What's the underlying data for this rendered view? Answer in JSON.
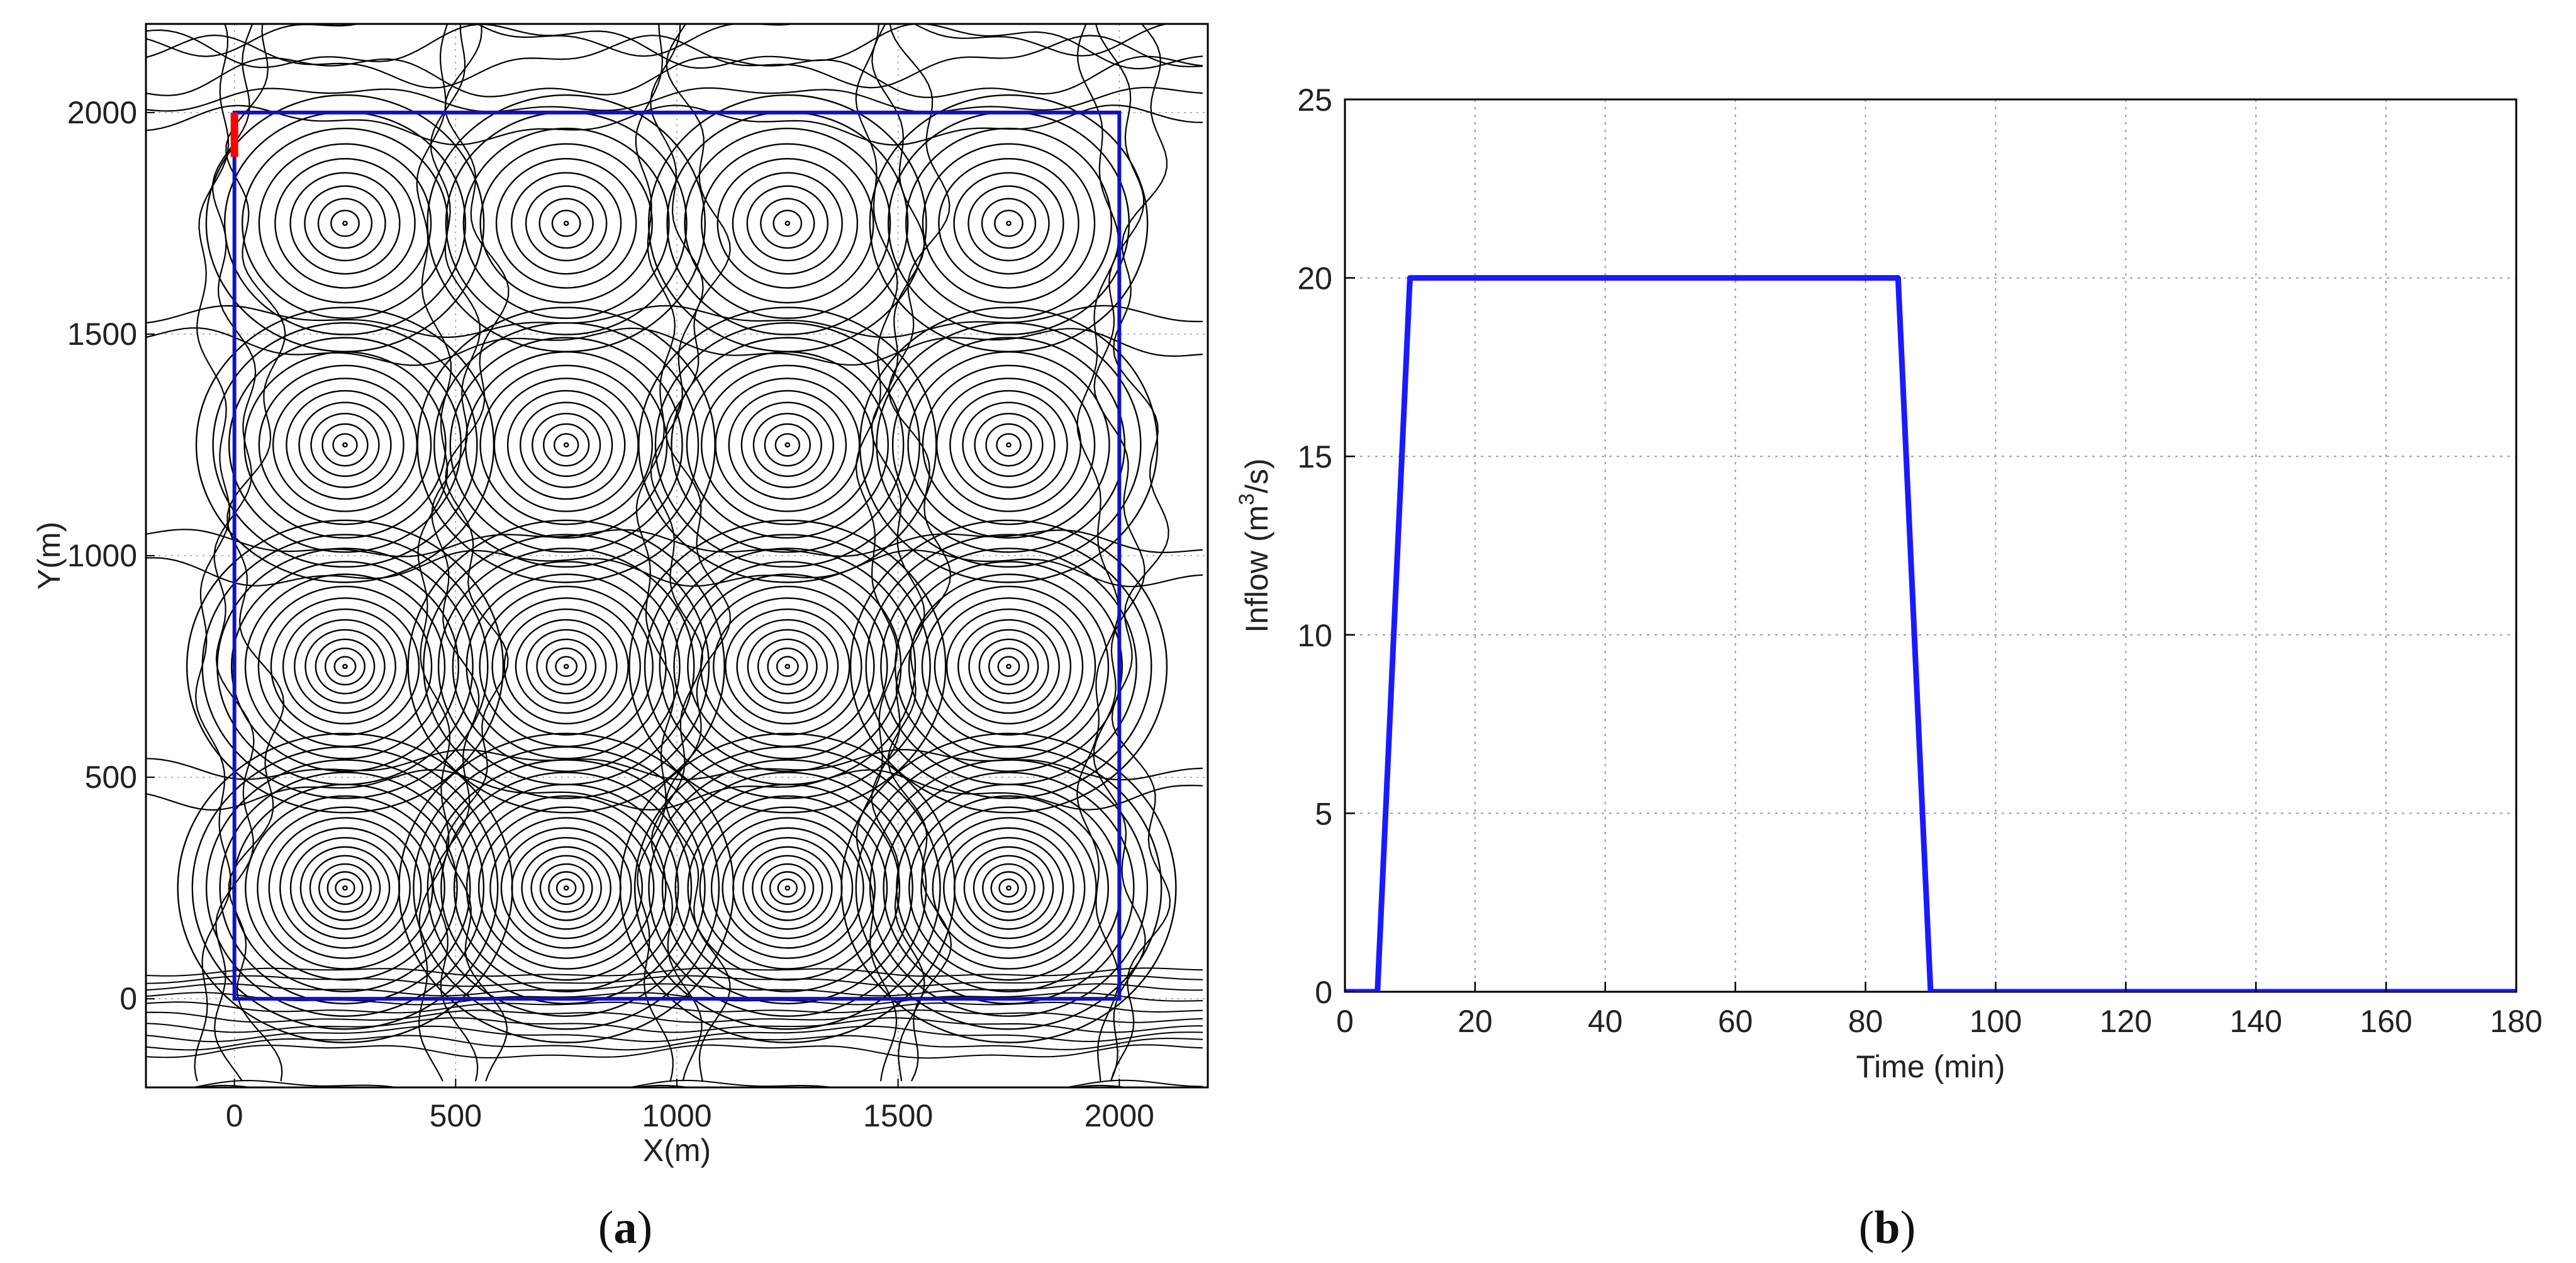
{
  "panel_a": {
    "caption_letter": "a",
    "xlabel": "X(m)",
    "ylabel": "Y(m)"
  },
  "panel_b": {
    "caption_letter": "b",
    "xlabel": "Time (min)",
    "ylabel_prefix": "Inflow (m",
    "ylabel_sup": "3",
    "ylabel_suffix": "/s)"
  },
  "colors": {
    "boundary": "#1010c8",
    "inflow_marker": "#ff0000",
    "contour": "#000000",
    "series": "#1a1aff",
    "grid": "#9a9a9a"
  },
  "chart_data": [
    {
      "type": "contour",
      "xlabel": "X(m)",
      "ylabel": "Y(m)",
      "xlim": [
        -200,
        2200
      ],
      "ylim": [
        -200,
        2200
      ],
      "xticks": [
        0,
        500,
        1000,
        1500,
        2000
      ],
      "yticks": [
        0,
        500,
        1000,
        1500,
        2000
      ],
      "domain_boundary": {
        "x": [
          0,
          2000
        ],
        "y": [
          0,
          2000
        ]
      },
      "inflow_segment": {
        "x": 0,
        "y": [
          1900,
          2000
        ]
      },
      "depressions": {
        "x": [
          250,
          750,
          1250,
          1750
        ],
        "y": [
          1750,
          1250,
          750,
          250
        ],
        "rings_per_row_top_to_bottom": [
          10,
          12,
          14,
          16
        ]
      },
      "grid": true
    },
    {
      "type": "line",
      "xlabel": "Time (min)",
      "ylabel": "Inflow (m3/s)",
      "xlim": [
        0,
        180
      ],
      "ylim": [
        0,
        25
      ],
      "xticks": [
        0,
        20,
        40,
        60,
        80,
        100,
        120,
        140,
        160,
        180
      ],
      "yticks": [
        0,
        5,
        10,
        15,
        20,
        25
      ],
      "grid": true,
      "series": [
        {
          "x": [
            0,
            5,
            10,
            85,
            90,
            180
          ],
          "y": [
            0,
            0,
            20,
            20,
            0,
            0
          ]
        }
      ]
    }
  ]
}
